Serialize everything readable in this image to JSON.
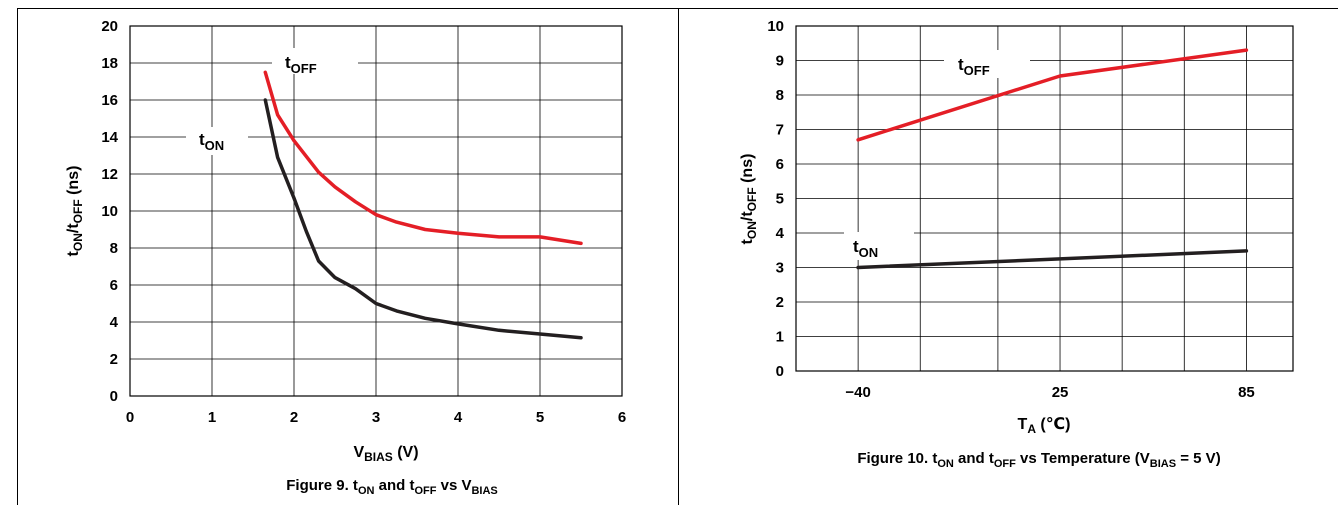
{
  "chart_data": [
    {
      "type": "line",
      "caption_prefix": "Figure 9. t",
      "caption_on": "ON",
      "caption_and": " and t",
      "caption_off": "OFF",
      "caption_vs": " vs V",
      "caption_bias": "BIAS",
      "xlabel_main": "V",
      "xlabel_sub": "BIAS",
      "xlabel_unit": " (V)",
      "ylabel_t1": "t",
      "ylabel_sub1": "ON",
      "ylabel_mid": "/t",
      "ylabel_sub2": "OFF",
      "ylabel_unit": " (ns)",
      "xlim": [
        0,
        6
      ],
      "ylim": [
        0,
        20
      ],
      "xticks": [
        "0",
        "1",
        "2",
        "3",
        "4",
        "5",
        "6"
      ],
      "yticks": [
        "0",
        "2",
        "4",
        "6",
        "8",
        "10",
        "12",
        "14",
        "16",
        "18",
        "20"
      ],
      "grid": true,
      "series": [
        {
          "name_t": "t",
          "name_sub": "OFF",
          "color": "#e41e26",
          "x": [
            1.65,
            1.8,
            2.0,
            2.3,
            2.5,
            2.75,
            3.0,
            3.25,
            3.6,
            4.0,
            4.5,
            5.0,
            5.5
          ],
          "y": [
            17.5,
            15.2,
            13.8,
            12.1,
            11.3,
            10.5,
            9.8,
            9.4,
            9.0,
            8.8,
            8.6,
            8.6,
            8.25
          ]
        },
        {
          "name_t": "t",
          "name_sub": "ON",
          "color": "#231f20",
          "x": [
            1.65,
            1.8,
            2.0,
            2.15,
            2.3,
            2.5,
            2.75,
            3.0,
            3.25,
            3.6,
            4.0,
            4.5,
            5.0,
            5.5
          ],
          "y": [
            16.0,
            12.9,
            10.7,
            8.9,
            7.3,
            6.4,
            5.8,
            5.0,
            4.6,
            4.2,
            3.9,
            3.55,
            3.35,
            3.15
          ]
        }
      ]
    },
    {
      "type": "line",
      "caption_prefix": "Figure 10. t",
      "caption_on": "ON",
      "caption_and": " and t",
      "caption_off": "OFF",
      "caption_vs": " vs Temperature (V",
      "caption_bias": "BIAS",
      "caption_end": " = 5 V)",
      "xlabel_main": "T",
      "xlabel_sub": "A",
      "xlabel_unit": " (℃)",
      "ylabel_t1": "t",
      "ylabel_sub1": "ON",
      "ylabel_mid": "/t",
      "ylabel_sub2": "OFF",
      "ylabel_unit": " (ns)",
      "xlim": [
        -60,
        100
      ],
      "ylim": [
        0,
        10
      ],
      "xticks": [
        "−40",
        "25",
        "85"
      ],
      "xtick_values": [
        -40,
        25,
        85
      ],
      "yticks": [
        "0",
        "1",
        "2",
        "3",
        "4",
        "5",
        "6",
        "7",
        "8",
        "9",
        "10"
      ],
      "grid": true,
      "series": [
        {
          "name_t": "t",
          "name_sub": "OFF",
          "color": "#e41e26",
          "x": [
            -40,
            25,
            85
          ],
          "y": [
            6.7,
            8.55,
            9.3
          ]
        },
        {
          "name_t": "t",
          "name_sub": "ON",
          "color": "#231f20",
          "x": [
            -40,
            25,
            85
          ],
          "y": [
            3.0,
            3.25,
            3.48
          ]
        }
      ]
    }
  ]
}
